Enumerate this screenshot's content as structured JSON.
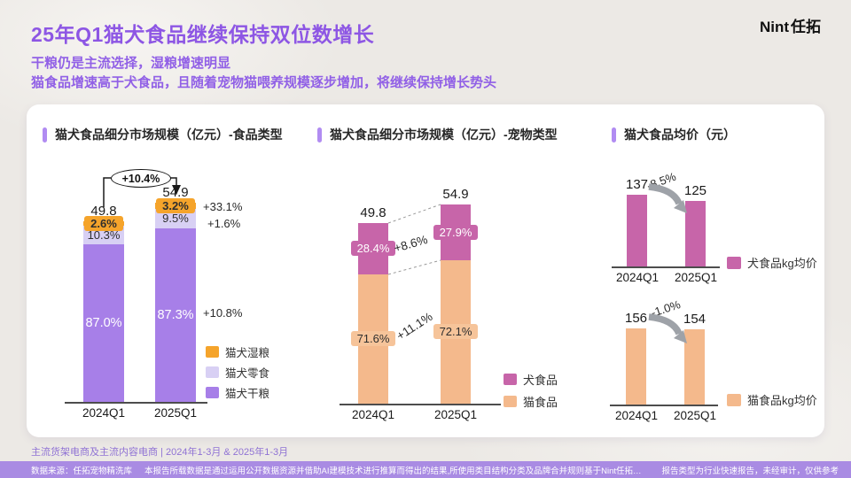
{
  "header": {
    "title": "25年Q1猫犬食品继续保持双位数增长",
    "subtitle1": "干粮仍是主流选择，湿粮增速明显",
    "subtitle2": "猫食品增速高于犬食品，且随着宠物猫喂养规模逐步增加，将继续保持增长势头",
    "logo_en": "Nint",
    "logo_cn": "任拓"
  },
  "ui_colors": {
    "title": "#8D56E4",
    "accent_bar": "#B18CF2",
    "footer_bar": "#A98BE3"
  },
  "chart_data": [
    {
      "type": "bar",
      "stacked": true,
      "title": "猫犬食品细分市场规模（亿元）-食品类型",
      "unit": "亿元",
      "categories": [
        "2024Q1",
        "2025Q1"
      ],
      "totals": [
        49.8,
        54.9
      ],
      "total_growth_label": "+10.4%",
      "series": [
        {
          "name": "猫犬湿粮",
          "pct": [
            2.6,
            3.2
          ],
          "pct_labels": [
            "2.6%",
            "3.2%"
          ],
          "growth_label": "+33.1%",
          "color": "#F5A42B"
        },
        {
          "name": "猫犬零食",
          "pct": [
            10.3,
            9.5
          ],
          "pct_labels": [
            "10.3%",
            "9.5%"
          ],
          "growth_label": "+1.6%",
          "color": "#D8D0F4"
        },
        {
          "name": "猫犬干粮",
          "pct": [
            87.0,
            87.3
          ],
          "pct_labels": [
            "87.0%",
            "87.3%"
          ],
          "growth_label": "+10.8%",
          "color": "#A77FE8"
        }
      ]
    },
    {
      "type": "bar",
      "stacked": true,
      "title": "猫犬食品细分市场规模（亿元）-宠物类型",
      "unit": "亿元",
      "categories": [
        "2024Q1",
        "2025Q1"
      ],
      "totals": [
        49.8,
        54.9
      ],
      "series": [
        {
          "name": "犬食品",
          "pct": [
            28.4,
            27.9
          ],
          "pct_labels": [
            "28.4%",
            "27.9%"
          ],
          "growth_label": "+8.6%",
          "color": "#C765A9",
          "chip_color": "#C765A9"
        },
        {
          "name": "猫食品",
          "pct": [
            71.6,
            72.1
          ],
          "pct_labels": [
            "71.6%",
            "72.1%"
          ],
          "growth_label": "+11.1%",
          "color": "#F4B98C",
          "chip_color": "#F6C49A"
        }
      ]
    },
    {
      "type": "bar",
      "title": "猫犬食品均价（元）",
      "unit": "元",
      "subcharts": [
        {
          "name": "犬食品kg均价",
          "categories": [
            "2024Q1",
            "2025Q1"
          ],
          "values": [
            137,
            125
          ],
          "growth_label": "-8.5%",
          "color": "#C765A9"
        },
        {
          "name": "猫食品kg均价",
          "categories": [
            "2024Q1",
            "2025Q1"
          ],
          "values": [
            156,
            154
          ],
          "growth_label": "-1.0%",
          "color": "#F4B98C"
        }
      ]
    }
  ],
  "footer": {
    "scope": "主流货架电商及主流内容电商 | 2024年1-3月 & 2025年1-3月",
    "source": "数据来源：任拓宠物精洗库",
    "disclaimer": "本报告所载数据是通过运用公开数据资源并借助AI建模技术进行推算而得出的结果,所使用类目结构分类及品牌合并规则基于Nint任拓定义分类。",
    "report_type": "报告类型为行业快速报告，未经审计，仅供参考"
  }
}
